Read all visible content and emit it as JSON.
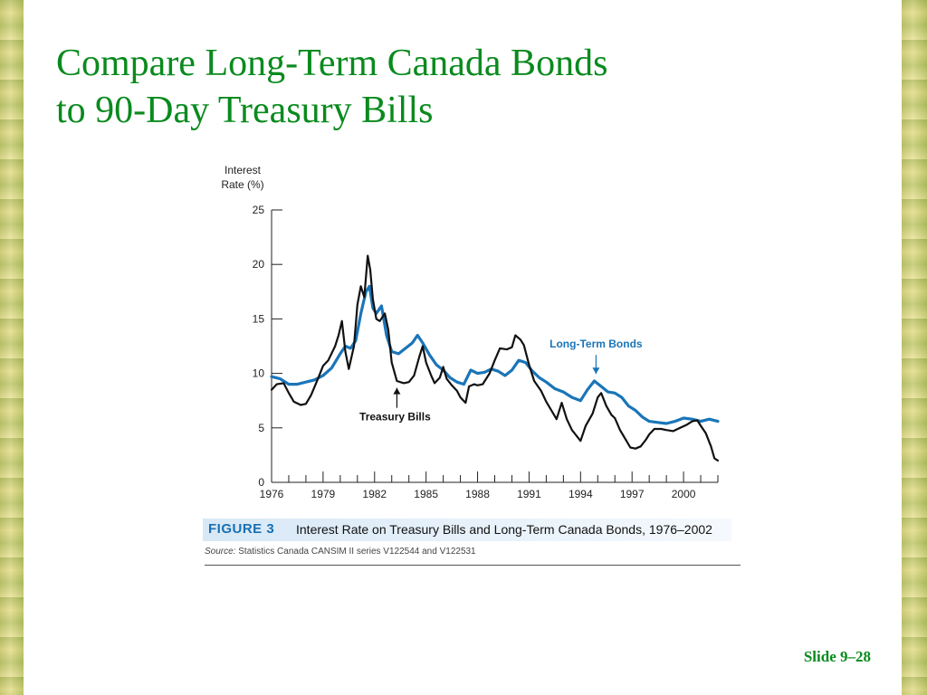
{
  "slide": {
    "title_line1": "Compare Long-Term Canada Bonds",
    "title_line2": "to 90-Day Treasury Bills",
    "slide_number": "Slide 9–28",
    "title_color": "#0a8a1e"
  },
  "figure": {
    "label": "FIGURE 3",
    "caption": "Interest Rate on Treasury Bills and Long-Term Canada Bonds, 1976–2002",
    "source_label": "Source:",
    "source_text": "Statistics Canada CANSIM II series V122544 and V122531",
    "label_color": "#1a6fb1"
  },
  "chart_data": {
    "type": "line",
    "title": "",
    "ylabel_line1": "Interest",
    "ylabel_line2": "Rate (%)",
    "xlabel": "",
    "xlim": [
      1976,
      2002
    ],
    "ylim": [
      0,
      25
    ],
    "x_ticks": [
      1976,
      1979,
      1982,
      1985,
      1988,
      1991,
      1994,
      1997,
      2000
    ],
    "y_ticks": [
      0,
      5,
      10,
      15,
      20,
      25
    ],
    "grid": false,
    "annotations": [
      {
        "text": "Long-Term Bonds",
        "series": "Long-Term Bonds",
        "point_x": 1994.9,
        "point_y": 9.7,
        "color": "#1a75b8"
      },
      {
        "text": "Treasury Bills",
        "series": "Treasury Bills",
        "point_x": 1983.3,
        "point_y": 9.0,
        "color": "#111111"
      }
    ],
    "series": [
      {
        "name": "Treasury Bills",
        "color": "#111111",
        "points": [
          [
            1976.0,
            8.5
          ],
          [
            1976.3,
            9.0
          ],
          [
            1976.7,
            9.1
          ],
          [
            1977.0,
            8.2
          ],
          [
            1977.3,
            7.4
          ],
          [
            1977.7,
            7.1
          ],
          [
            1978.0,
            7.2
          ],
          [
            1978.3,
            8.0
          ],
          [
            1978.7,
            9.5
          ],
          [
            1979.0,
            10.7
          ],
          [
            1979.3,
            11.2
          ],
          [
            1979.7,
            12.5
          ],
          [
            1979.9,
            13.5
          ],
          [
            1980.1,
            14.8
          ],
          [
            1980.3,
            12.0
          ],
          [
            1980.5,
            10.4
          ],
          [
            1980.8,
            12.5
          ],
          [
            1981.0,
            16.3
          ],
          [
            1981.2,
            18.0
          ],
          [
            1981.4,
            17.0
          ],
          [
            1981.6,
            20.8
          ],
          [
            1981.75,
            19.5
          ],
          [
            1981.9,
            16.8
          ],
          [
            1982.1,
            15.0
          ],
          [
            1982.3,
            14.8
          ],
          [
            1982.6,
            15.5
          ],
          [
            1982.8,
            14.0
          ],
          [
            1983.0,
            11.0
          ],
          [
            1983.3,
            9.3
          ],
          [
            1983.7,
            9.1
          ],
          [
            1984.0,
            9.2
          ],
          [
            1984.3,
            9.8
          ],
          [
            1984.6,
            11.5
          ],
          [
            1984.8,
            12.5
          ],
          [
            1985.0,
            11.0
          ],
          [
            1985.3,
            9.8
          ],
          [
            1985.5,
            9.1
          ],
          [
            1985.8,
            9.6
          ],
          [
            1986.0,
            10.6
          ],
          [
            1986.2,
            9.5
          ],
          [
            1986.5,
            8.9
          ],
          [
            1986.8,
            8.4
          ],
          [
            1987.0,
            7.8
          ],
          [
            1987.3,
            7.3
          ],
          [
            1987.5,
            8.8
          ],
          [
            1987.8,
            9.0
          ],
          [
            1988.0,
            8.9
          ],
          [
            1988.3,
            9.0
          ],
          [
            1988.7,
            10.0
          ],
          [
            1989.0,
            11.2
          ],
          [
            1989.3,
            12.3
          ],
          [
            1989.7,
            12.2
          ],
          [
            1990.0,
            12.4
          ],
          [
            1990.2,
            13.5
          ],
          [
            1990.5,
            13.1
          ],
          [
            1990.7,
            12.6
          ],
          [
            1991.0,
            10.8
          ],
          [
            1991.3,
            9.3
          ],
          [
            1991.7,
            8.4
          ],
          [
            1992.0,
            7.4
          ],
          [
            1992.3,
            6.6
          ],
          [
            1992.6,
            5.8
          ],
          [
            1992.9,
            7.3
          ],
          [
            1993.2,
            5.8
          ],
          [
            1993.5,
            4.8
          ],
          [
            1993.8,
            4.2
          ],
          [
            1994.0,
            3.8
          ],
          [
            1994.3,
            5.2
          ],
          [
            1994.7,
            6.3
          ],
          [
            1995.0,
            7.8
          ],
          [
            1995.2,
            8.2
          ],
          [
            1995.5,
            7.0
          ],
          [
            1995.8,
            6.2
          ],
          [
            1996.0,
            5.9
          ],
          [
            1996.3,
            4.8
          ],
          [
            1996.6,
            4.0
          ],
          [
            1996.9,
            3.2
          ],
          [
            1997.2,
            3.1
          ],
          [
            1997.5,
            3.3
          ],
          [
            1997.8,
            3.9
          ],
          [
            1998.0,
            4.4
          ],
          [
            1998.3,
            4.9
          ],
          [
            1998.7,
            4.9
          ],
          [
            1999.0,
            4.8
          ],
          [
            1999.4,
            4.7
          ],
          [
            1999.8,
            5.0
          ],
          [
            2000.2,
            5.3
          ],
          [
            2000.5,
            5.6
          ],
          [
            2000.8,
            5.7
          ],
          [
            2001.0,
            5.2
          ],
          [
            2001.3,
            4.5
          ],
          [
            2001.6,
            3.3
          ],
          [
            2001.8,
            2.2
          ],
          [
            2002.0,
            2.0
          ]
        ]
      },
      {
        "name": "Long-Term Bonds",
        "color": "#1a75b8",
        "points": [
          [
            1976.0,
            9.7
          ],
          [
            1976.5,
            9.5
          ],
          [
            1977.0,
            9.0
          ],
          [
            1977.5,
            9.0
          ],
          [
            1978.0,
            9.2
          ],
          [
            1978.5,
            9.4
          ],
          [
            1979.0,
            9.8
          ],
          [
            1979.5,
            10.5
          ],
          [
            1980.0,
            11.8
          ],
          [
            1980.3,
            12.5
          ],
          [
            1980.6,
            12.3
          ],
          [
            1980.9,
            13.0
          ],
          [
            1981.2,
            15.5
          ],
          [
            1981.5,
            17.5
          ],
          [
            1981.7,
            18.0
          ],
          [
            1981.9,
            16.0
          ],
          [
            1982.1,
            15.5
          ],
          [
            1982.4,
            16.2
          ],
          [
            1982.7,
            13.5
          ],
          [
            1983.0,
            12.0
          ],
          [
            1983.4,
            11.8
          ],
          [
            1983.8,
            12.3
          ],
          [
            1984.2,
            12.8
          ],
          [
            1984.5,
            13.5
          ],
          [
            1984.8,
            12.8
          ],
          [
            1985.2,
            11.7
          ],
          [
            1985.6,
            10.8
          ],
          [
            1986.0,
            10.3
          ],
          [
            1986.4,
            9.6
          ],
          [
            1986.8,
            9.2
          ],
          [
            1987.2,
            9.0
          ],
          [
            1987.6,
            10.3
          ],
          [
            1988.0,
            10.0
          ],
          [
            1988.4,
            10.1
          ],
          [
            1988.8,
            10.4
          ],
          [
            1989.2,
            10.2
          ],
          [
            1989.6,
            9.8
          ],
          [
            1990.0,
            10.3
          ],
          [
            1990.4,
            11.2
          ],
          [
            1990.8,
            11.0
          ],
          [
            1991.2,
            10.2
          ],
          [
            1991.6,
            9.6
          ],
          [
            1992.0,
            9.2
          ],
          [
            1992.5,
            8.6
          ],
          [
            1993.0,
            8.3
          ],
          [
            1993.5,
            7.8
          ],
          [
            1994.0,
            7.5
          ],
          [
            1994.4,
            8.5
          ],
          [
            1994.8,
            9.3
          ],
          [
            1995.2,
            8.8
          ],
          [
            1995.6,
            8.3
          ],
          [
            1996.0,
            8.2
          ],
          [
            1996.4,
            7.8
          ],
          [
            1996.8,
            7.0
          ],
          [
            1997.2,
            6.6
          ],
          [
            1997.6,
            6.0
          ],
          [
            1998.0,
            5.6
          ],
          [
            1998.5,
            5.5
          ],
          [
            1999.0,
            5.4
          ],
          [
            1999.5,
            5.6
          ],
          [
            2000.0,
            5.9
          ],
          [
            2000.5,
            5.8
          ],
          [
            2001.0,
            5.6
          ],
          [
            2001.5,
            5.8
          ],
          [
            2002.0,
            5.6
          ]
        ]
      }
    ]
  }
}
